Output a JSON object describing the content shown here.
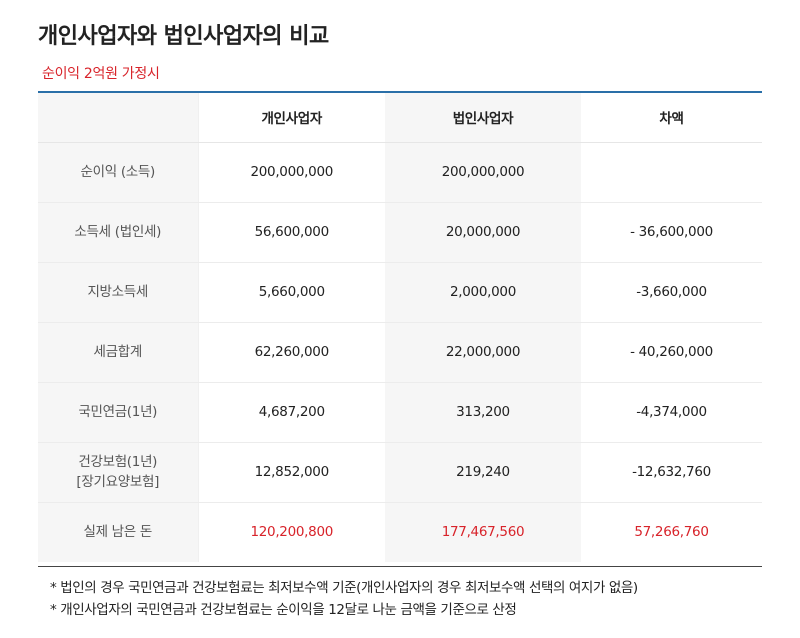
{
  "title": "개인사업자와 법인사업자의 비교",
  "subtitle": "순이익 2억원 가정시",
  "table": {
    "headers": [
      "",
      "개인사업자",
      "법인사업자",
      "차액"
    ],
    "rows": [
      {
        "label": "순이익 (소득)",
        "label2": "",
        "individual": "200,000,000",
        "corporate": "200,000,000",
        "difference": ""
      },
      {
        "label": "소득세 (법인세)",
        "label2": "",
        "individual": "56,600,000",
        "corporate": "20,000,000",
        "difference": "- 36,600,000"
      },
      {
        "label": "지방소득세",
        "label2": "",
        "individual": "5,660,000",
        "corporate": "2,000,000",
        "difference": "-3,660,000"
      },
      {
        "label": "세금합계",
        "label2": "",
        "individual": "62,260,000",
        "corporate": "22,000,000",
        "difference": "- 40,260,000"
      },
      {
        "label": "국민연금(1년)",
        "label2": "",
        "individual": "4,687,200",
        "corporate": "313,200",
        "difference": "-4,374,000"
      },
      {
        "label": "건강보험(1년)",
        "label2": "[장기요양보험]",
        "individual": "12,852,000",
        "corporate": "219,240",
        "difference": "-12,632,760"
      },
      {
        "label": "실제 남은 돈",
        "label2": "",
        "individual": "120,200,800",
        "corporate": "177,467,560",
        "difference": "57,266,760"
      }
    ]
  },
  "notes": [
    "* 법인의 경우 국민연금과 건강보험료는 최저보수액 기준(개인사업자의 경우 최저보수액 선택의 여지가 없음)",
    "* 개인사업자의 국민연금과 건강보험료는 순이익을 12달로 나눈 금액을 기준으로 산정"
  ],
  "colors": {
    "accent_red": "#d8232a",
    "rule_blue": "#2a6fa8"
  }
}
